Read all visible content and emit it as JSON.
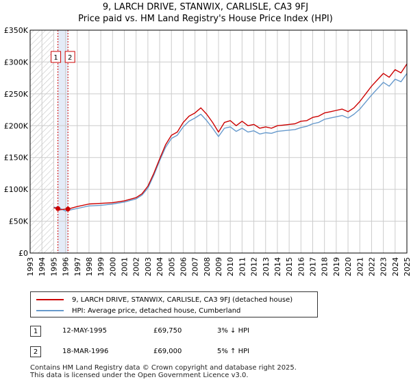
{
  "title": {
    "line1": "9, LARCH DRIVE, STANWIX, CARLISLE, CA3 9FJ",
    "line2": "Price paid vs. HM Land Registry's House Price Index (HPI)"
  },
  "colors": {
    "price_line": "#cc0000",
    "hpi_line": "#6699cc",
    "marker_line": "#cc0000",
    "hatch_region": "#bbbbbb",
    "grid": "#cccccc"
  },
  "chart_data": {
    "type": "line",
    "title": "9, LARCH DRIVE, STANWIX, CARLISLE, CA3 9FJ — Price paid vs. HM Land Registry's House Price Index (HPI)",
    "xlabel": "",
    "ylabel": "",
    "xlim": [
      1993,
      2025
    ],
    "ylim": [
      0,
      350000
    ],
    "y_ticks": [
      0,
      50000,
      100000,
      150000,
      200000,
      250000,
      300000,
      350000
    ],
    "y_tick_labels": [
      "£0",
      "£50K",
      "£100K",
      "£150K",
      "£200K",
      "£250K",
      "£300K",
      "£350K"
    ],
    "x_ticks": [
      1993,
      1994,
      1995,
      1996,
      1997,
      1998,
      1999,
      2000,
      2001,
      2002,
      2003,
      2004,
      2005,
      2006,
      2007,
      2008,
      2009,
      2010,
      2011,
      2012,
      2013,
      2014,
      2015,
      2016,
      2017,
      2018,
      2019,
      2020,
      2021,
      2022,
      2023,
      2024,
      2025
    ],
    "x_tick_labels": [
      "1993",
      "1994",
      "1995",
      "1996",
      "1997",
      "1998",
      "1999",
      "2000",
      "2001",
      "2002",
      "2003",
      "2004",
      "2005",
      "2006",
      "2007",
      "2008",
      "2009",
      "2010",
      "2011",
      "2012",
      "2013",
      "2014",
      "2015",
      "2016",
      "2017",
      "2018",
      "2019",
      "2020",
      "2021",
      "2022",
      "2023",
      "2024",
      "2025"
    ],
    "grid": true,
    "hatched_before": 1995.0,
    "highlight_band": [
      1995.36,
      1996.21
    ],
    "series": [
      {
        "name": "9, LARCH DRIVE, STANWIX, CARLISLE, CA3 9FJ (detached house)",
        "x": [
          1995.0,
          1995.36,
          1995.5,
          1996.0,
          1996.21,
          1997.0,
          1998.0,
          1999.0,
          2000.0,
          2001.0,
          2002.0,
          2002.5,
          2003.0,
          2003.5,
          2004.0,
          2004.5,
          2005.0,
          2005.5,
          2006.0,
          2006.5,
          2007.0,
          2007.5,
          2008.0,
          2008.5,
          2009.0,
          2009.5,
          2010.0,
          2010.5,
          2011.0,
          2011.5,
          2012.0,
          2012.5,
          2013.0,
          2013.5,
          2014.0,
          2014.5,
          2015.0,
          2015.5,
          2016.0,
          2016.5,
          2017.0,
          2017.5,
          2018.0,
          2018.5,
          2019.0,
          2019.5,
          2020.0,
          2020.5,
          2021.0,
          2021.5,
          2022.0,
          2022.5,
          2023.0,
          2023.5,
          2024.0,
          2024.5,
          2025.0
        ],
        "values": [
          71000,
          69750,
          68000,
          69000,
          69000,
          73000,
          77000,
          78000,
          79000,
          82000,
          87000,
          93000,
          105000,
          125000,
          148000,
          170000,
          185000,
          190000,
          205000,
          215000,
          220000,
          228000,
          218000,
          205000,
          190000,
          205000,
          208000,
          200000,
          207000,
          200000,
          202000,
          196000,
          198000,
          196000,
          200000,
          201000,
          202000,
          203000,
          207000,
          208000,
          213000,
          215000,
          220000,
          222000,
          224000,
          226000,
          222000,
          228000,
          238000,
          250000,
          262000,
          272000,
          282000,
          276000,
          288000,
          283000,
          297000
        ]
      },
      {
        "name": "HPI: Average price, detached house, Cumberland",
        "x": [
          1995.0,
          1995.5,
          1996.0,
          1997.0,
          1998.0,
          1999.0,
          2000.0,
          2001.0,
          2002.0,
          2002.5,
          2003.0,
          2003.5,
          2004.0,
          2004.5,
          2005.0,
          2005.5,
          2006.0,
          2006.5,
          2007.0,
          2007.5,
          2008.0,
          2008.5,
          2009.0,
          2009.5,
          2010.0,
          2010.5,
          2011.0,
          2011.5,
          2012.0,
          2012.5,
          2013.0,
          2013.5,
          2014.0,
          2014.5,
          2015.0,
          2015.5,
          2016.0,
          2016.5,
          2017.0,
          2017.5,
          2018.0,
          2018.5,
          2019.0,
          2019.5,
          2020.0,
          2020.5,
          2021.0,
          2021.5,
          2022.0,
          2022.5,
          2023.0,
          2023.5,
          2024.0,
          2024.5,
          2025.0
        ],
        "values": [
          72000,
          70500,
          66000,
          70000,
          74000,
          75000,
          77000,
          80000,
          85000,
          91000,
          102000,
          122000,
          145000,
          166000,
          180000,
          185000,
          198000,
          207000,
          212000,
          218000,
          208000,
          196000,
          183000,
          196000,
          198000,
          191000,
          196000,
          190000,
          192000,
          187000,
          189000,
          188000,
          191000,
          192000,
          193000,
          194000,
          197000,
          199000,
          203000,
          205000,
          210000,
          212000,
          214000,
          216000,
          212000,
          218000,
          226000,
          237000,
          248000,
          258000,
          268000,
          262000,
          273000,
          269000,
          282000
        ]
      }
    ],
    "sale_markers": [
      {
        "label": "1",
        "x": 1995.36,
        "value": 69750
      },
      {
        "label": "2",
        "x": 1996.21,
        "value": 69000
      }
    ]
  },
  "legend": {
    "price_label": "9, LARCH DRIVE, STANWIX, CARLISLE, CA3 9FJ (detached house)",
    "hpi_label": "HPI: Average price, detached house, Cumberland"
  },
  "sales": [
    {
      "num": "1",
      "date": "12-MAY-1995",
      "price": "£69,750",
      "hpi": "3% ↓ HPI"
    },
    {
      "num": "2",
      "date": "18-MAR-1996",
      "price": "£69,000",
      "hpi": "5% ↑ HPI"
    }
  ],
  "footer": {
    "line1": "Contains HM Land Registry data © Crown copyright and database right 2025.",
    "line2": "This data is licensed under the Open Government Licence v3.0."
  }
}
